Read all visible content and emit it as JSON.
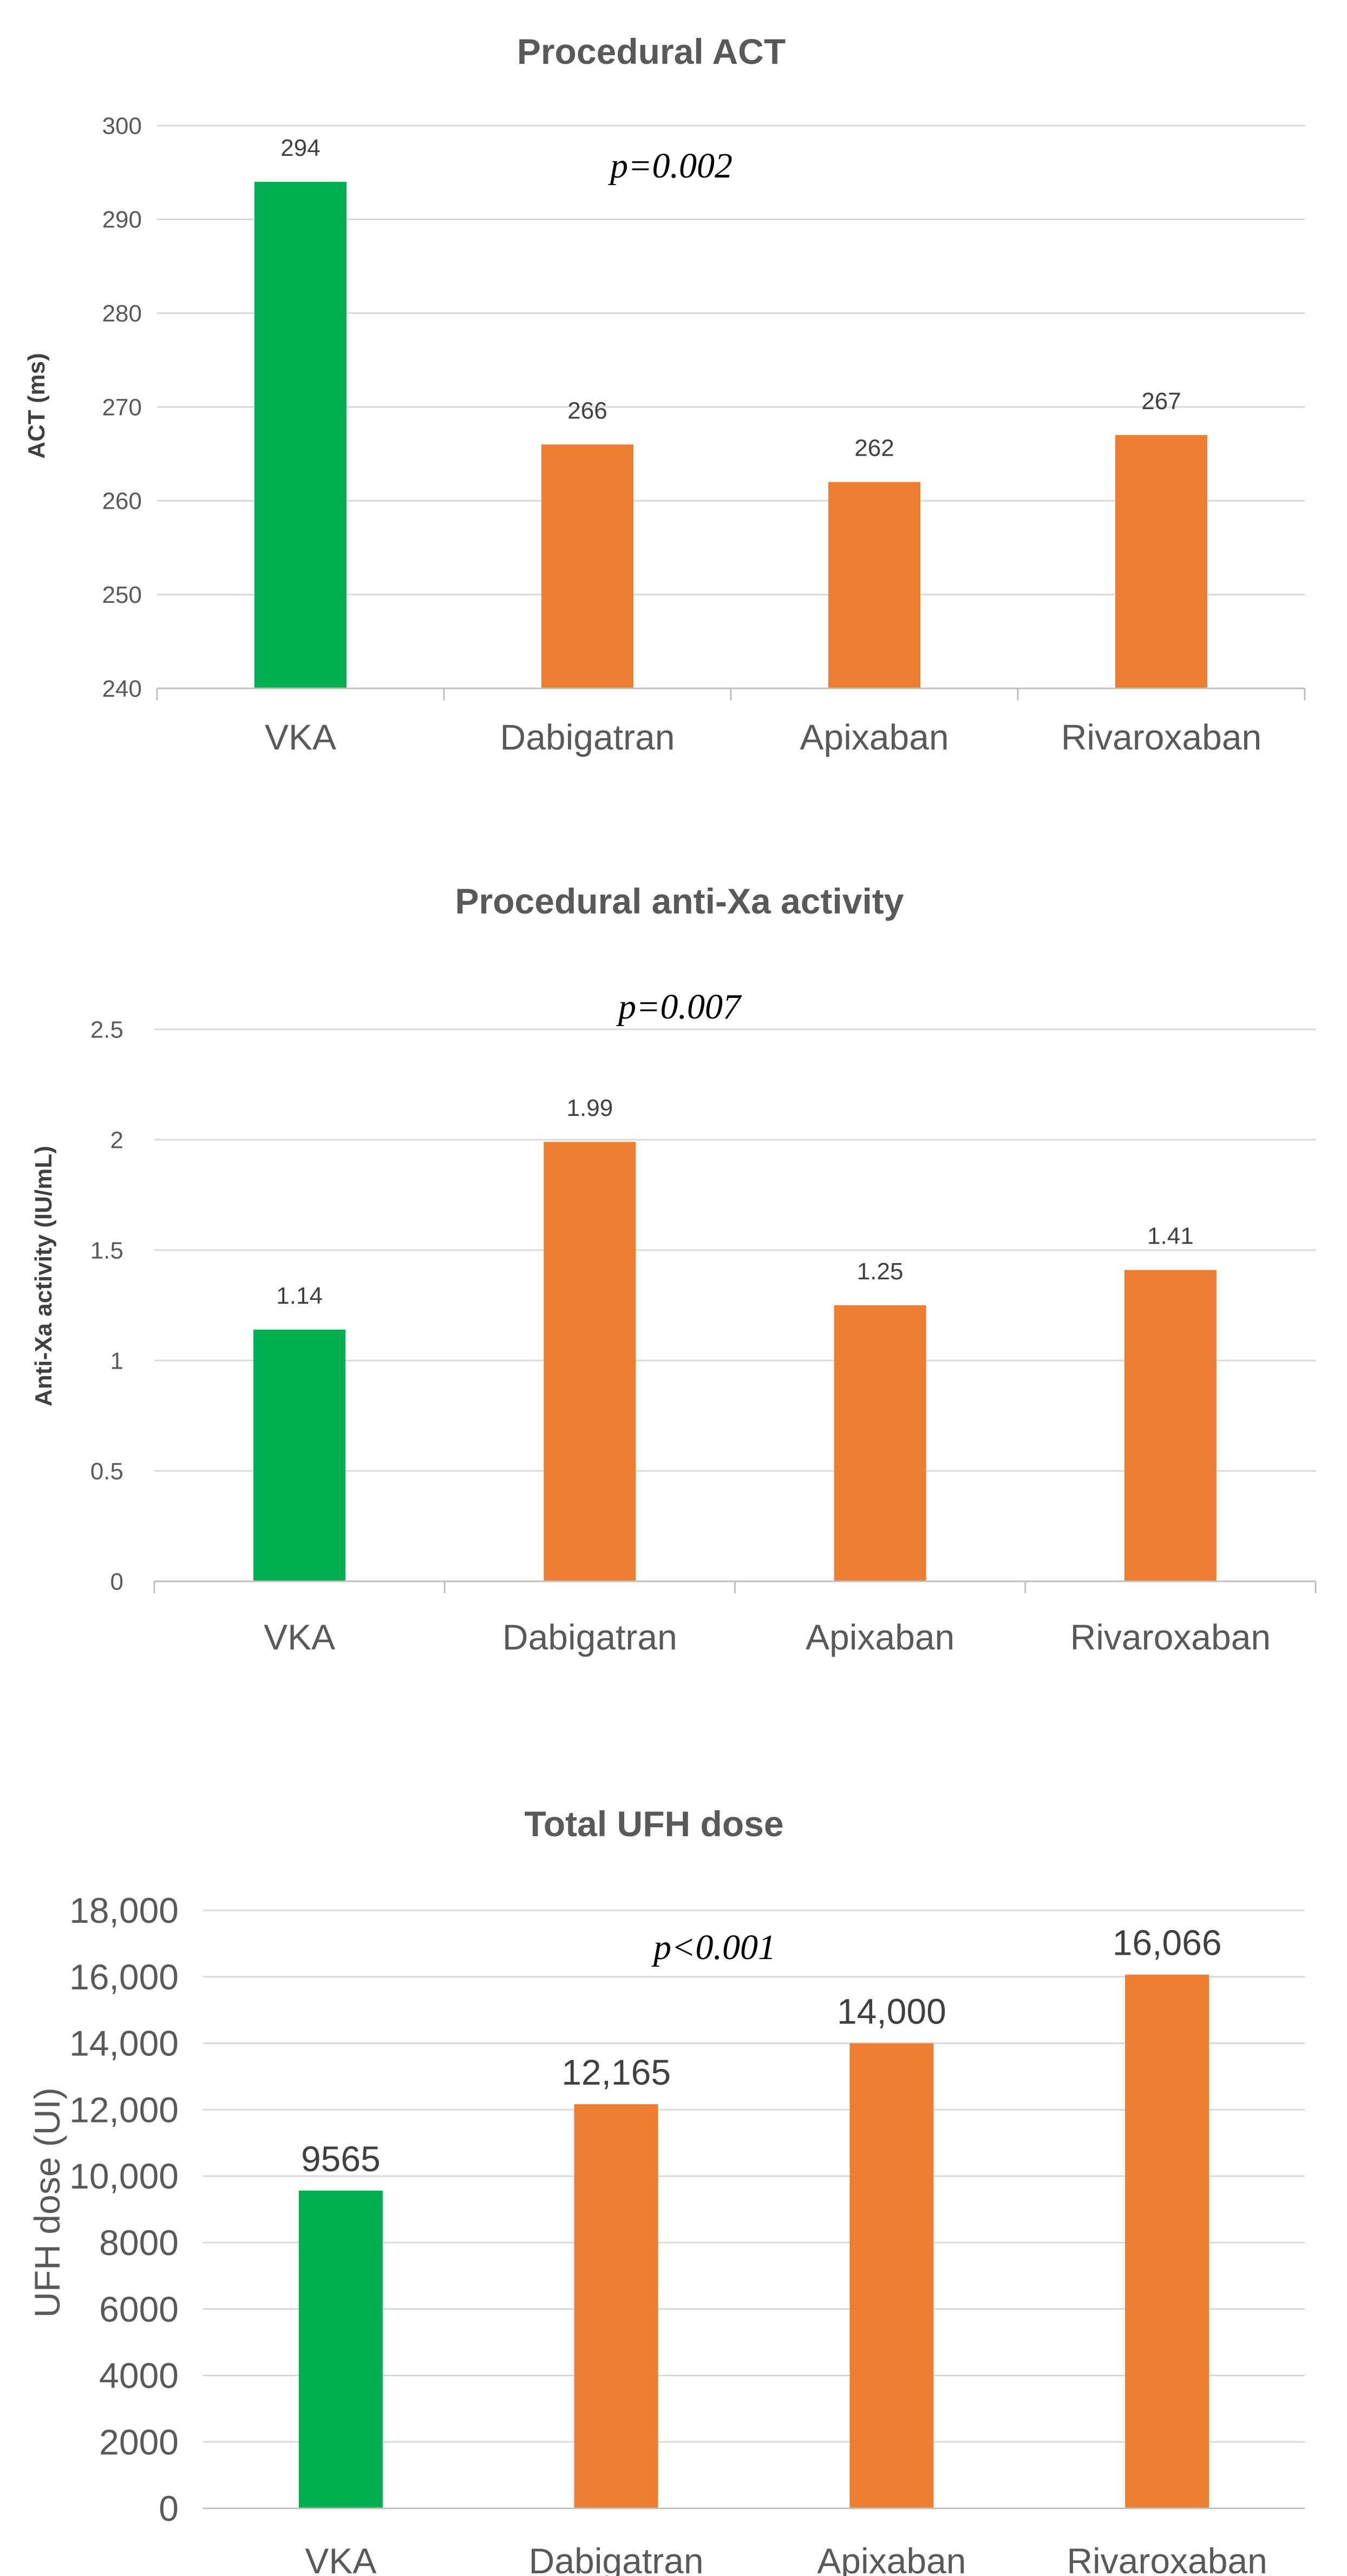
{
  "chart_data": [
    {
      "type": "bar",
      "title": "Procedural ACT",
      "ylabel": "ACT (ms)",
      "xlabel": "",
      "annotation": "p=0.002",
      "categories": [
        "VKA",
        "Dabigatran",
        "Apixaban",
        "Rivaroxaban"
      ],
      "values": [
        294,
        266,
        262,
        267
      ],
      "value_labels": [
        "294",
        "266",
        "262",
        "267"
      ],
      "bar_colors": [
        "#00b050",
        "#ed7d31",
        "#ed7d31",
        "#ed7d31"
      ],
      "ylim": [
        240,
        300
      ],
      "yticks": [
        240,
        250,
        260,
        270,
        280,
        290,
        300
      ],
      "ytick_labels": [
        "240",
        "250",
        "260",
        "270",
        "280",
        "290",
        "300"
      ],
      "grid": true
    },
    {
      "type": "bar",
      "title": "Procedural anti-Xa activity",
      "ylabel": "Anti-Xa activity  (IU/mL)",
      "xlabel": "",
      "annotation": "p=0.007",
      "categories": [
        "VKA",
        "Dabigatran",
        "Apixaban",
        "Rivaroxaban"
      ],
      "values": [
        1.14,
        1.99,
        1.25,
        1.41
      ],
      "value_labels": [
        "1.14",
        "1.99",
        "1.25",
        "1.41"
      ],
      "bar_colors": [
        "#00b050",
        "#ed7d31",
        "#ed7d31",
        "#ed7d31"
      ],
      "ylim": [
        0,
        2.5
      ],
      "yticks": [
        0,
        0.5,
        1,
        1.5,
        2,
        2.5
      ],
      "ytick_labels": [
        "0",
        "0.5",
        "1",
        "1.5",
        "2",
        "2.5"
      ],
      "grid": true
    },
    {
      "type": "bar",
      "title": "Total UFH dose",
      "ylabel": "UFH dose (UI)",
      "xlabel": "",
      "annotation": "p<0.001",
      "categories": [
        "VKA",
        "Dabigatran",
        "Apixaban",
        "Rivaroxaban"
      ],
      "values": [
        9565,
        12165,
        14000,
        16066
      ],
      "value_labels": [
        "9565",
        "12,165",
        "14,000",
        "16,066"
      ],
      "bar_colors": [
        "#00b050",
        "#ed7d31",
        "#ed7d31",
        "#ed7d31"
      ],
      "ylim": [
        0,
        18000
      ],
      "yticks": [
        0,
        2000,
        4000,
        6000,
        8000,
        10000,
        12000,
        14000,
        16000,
        18000
      ],
      "ytick_labels": [
        "0",
        "2000",
        "4000",
        "6000",
        "8000",
        "10,000",
        "12,000",
        "14,000",
        "16,000",
        "18,000"
      ],
      "grid": true
    }
  ]
}
